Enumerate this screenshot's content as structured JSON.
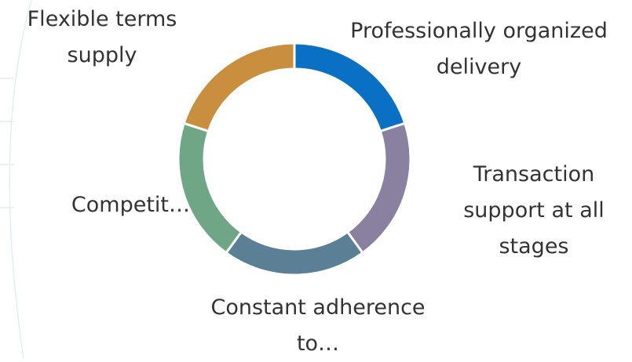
{
  "chart_data": {
    "type": "donut",
    "categories": [
      "Professionally organized delivery",
      "Transaction support at all stages",
      "Constant adherence to…",
      "Competit…",
      "Flexible terms supply"
    ],
    "values": [
      20,
      20,
      20,
      20,
      20
    ],
    "colors": [
      "#0a70c4",
      "#8a80a0",
      "#5b7f95",
      "#6ea686",
      "#c98f3e"
    ]
  }
}
